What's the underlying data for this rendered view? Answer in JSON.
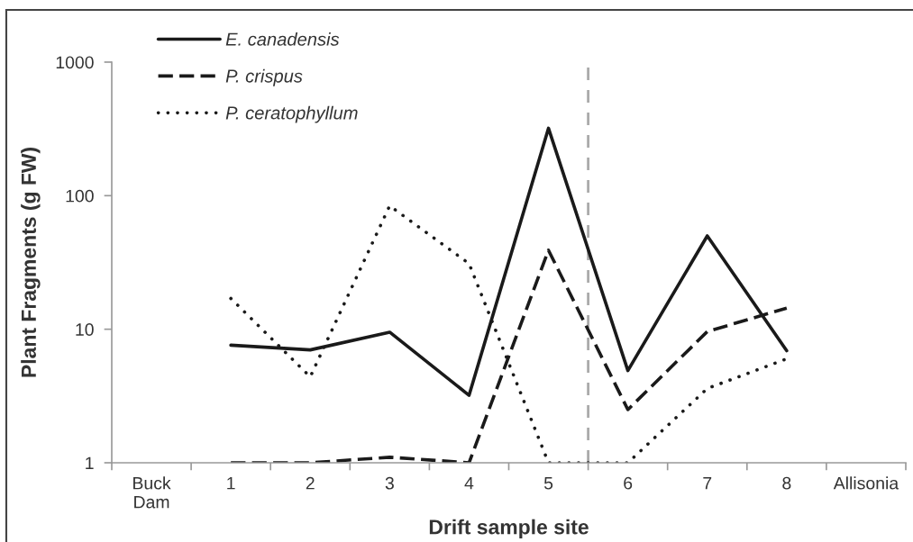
{
  "chart_data": {
    "type": "line",
    "xlabel": "Drift sample site",
    "ylabel": "Plant Fragments (g FW)",
    "xlim": [
      -0.5,
      9.5
    ],
    "xticks": [
      {
        "value": 0,
        "label": "Buck\nDam"
      },
      1,
      2,
      3,
      4,
      5,
      6,
      7,
      8,
      {
        "value": 9,
        "label": "Allisonia"
      }
    ],
    "log": "y",
    "ylim": [
      1,
      1000
    ],
    "yticks": [
      1,
      10,
      100,
      1000
    ],
    "legend": "top left",
    "series": [
      {
        "name": "E. canadensis",
        "color": "#1a1a1a",
        "line_style": "solid",
        "x": [
          1,
          2,
          3,
          4,
          5,
          6,
          7,
          8
        ],
        "values": [
          7.6,
          7.0,
          9.5,
          3.2,
          320,
          4.9,
          50,
          6.9
        ]
      },
      {
        "name": "P. crispus",
        "color": "#1a1a1a",
        "line_style": "dashed",
        "x": [
          1,
          2,
          3,
          4,
          5,
          6,
          7,
          8
        ],
        "values": [
          1.0,
          1.0,
          1.1,
          1.0,
          39,
          2.5,
          9.6,
          14.4
        ]
      },
      {
        "name": "P. ceratophyllum",
        "color": "#1a1a1a",
        "line_style": "dotted",
        "x": [
          1,
          2,
          3,
          4,
          5,
          6,
          7,
          8
        ],
        "values": [
          17,
          4.4,
          84,
          31,
          1.0,
          1.0,
          3.6,
          6.0
        ]
      }
    ],
    "ref_lines": [
      {
        "axis": "x",
        "value": 5.5,
        "color": "#aaaaaa",
        "line_style": "dashed"
      }
    ]
  }
}
